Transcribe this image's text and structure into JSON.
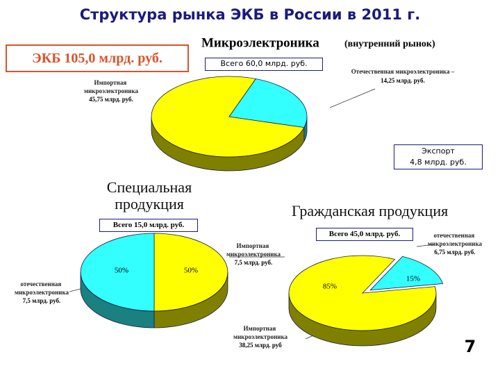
{
  "title": "Структура рынка ЭКБ в России в 2011 г.",
  "ekb_box": "ЭКБ 105,0 млрд. руб.",
  "export_box": {
    "line1": "Экспорт",
    "line2": "4,8 млрд. руб."
  },
  "page_number": "7",
  "chart_data": [
    {
      "type": "pie",
      "title": "Микроэлектроника",
      "subtitle": "(внутренний рынок)",
      "total_label": "Всего 60,0 млрд. руб.",
      "categories": [
        "Импортная микроэлектроника",
        "Отечественная микроэлектроника –"
      ],
      "values": [
        45.75,
        14.25
      ],
      "value_labels": [
        "45,75 млрд. руб.",
        "14,25 млрд. руб."
      ],
      "colors": [
        "#ffff00",
        "#33ffff"
      ]
    },
    {
      "type": "pie",
      "title": "Специальная продукция",
      "total_label": "Всего 15,0 млрд. руб.",
      "categories": [
        "Импортная микроэлектроника",
        "отечественная микроэлектроника"
      ],
      "values": [
        50,
        50
      ],
      "value_labels": [
        "50%",
        "50%"
      ],
      "amount_labels": [
        "7,5 млрд. руб.",
        "7,5 млрд. руб."
      ],
      "colors": [
        "#ffff00",
        "#33ffff"
      ]
    },
    {
      "type": "pie",
      "title": "Гражданская продукция",
      "total_label": "Всего 45,0 млрд. руб.",
      "categories": [
        "Импортная микроэлектроника",
        "отечественная микроэлектроника"
      ],
      "values": [
        85,
        15
      ],
      "value_labels": [
        "85%",
        "15%"
      ],
      "amount_labels": [
        "38,25 млрд. руб",
        "6,75 млрд. руб."
      ],
      "colors": [
        "#ffff00",
        "#33ffff"
      ]
    }
  ]
}
